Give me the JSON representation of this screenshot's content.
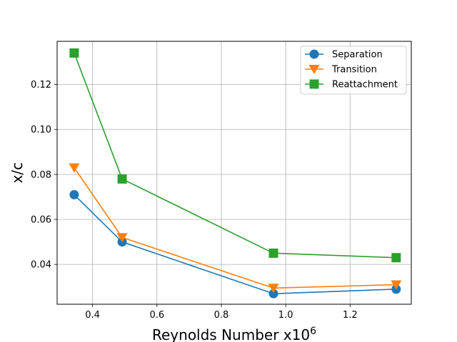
{
  "chart_data": {
    "type": "line",
    "title": "",
    "xlabel": "Reynolds Number x10",
    "xlabel_superscript": "6",
    "ylabel": "x/c",
    "xlim": [
      0.29,
      1.39
    ],
    "ylim": [
      0.0223,
      0.1392
    ],
    "x_ticks": [
      0.4,
      0.6,
      0.8,
      1.0,
      1.2
    ],
    "x_tick_labels": [
      "0.4",
      "0.6",
      "0.8",
      "1.0",
      "1.2"
    ],
    "y_ticks": [
      0.04,
      0.06,
      0.08,
      0.1,
      0.12
    ],
    "y_tick_labels": [
      "0.04",
      "0.06",
      "0.08",
      "0.10",
      "0.12"
    ],
    "grid": true,
    "legend_position": "top-right",
    "x": [
      0.343,
      0.492,
      0.962,
      1.343
    ],
    "series": [
      {
        "name": "Separation",
        "values": [
          0.071,
          0.05,
          0.027,
          0.029
        ],
        "color": "#1f77b4",
        "marker": "circle"
      },
      {
        "name": "Transition",
        "values": [
          0.083,
          0.052,
          0.0295,
          0.031
        ],
        "color": "#ff7f0e",
        "marker": "triangle-down"
      },
      {
        "name": "Reattachment",
        "values": [
          0.134,
          0.078,
          0.045,
          0.043
        ],
        "color": "#2ca02c",
        "marker": "square"
      }
    ]
  }
}
